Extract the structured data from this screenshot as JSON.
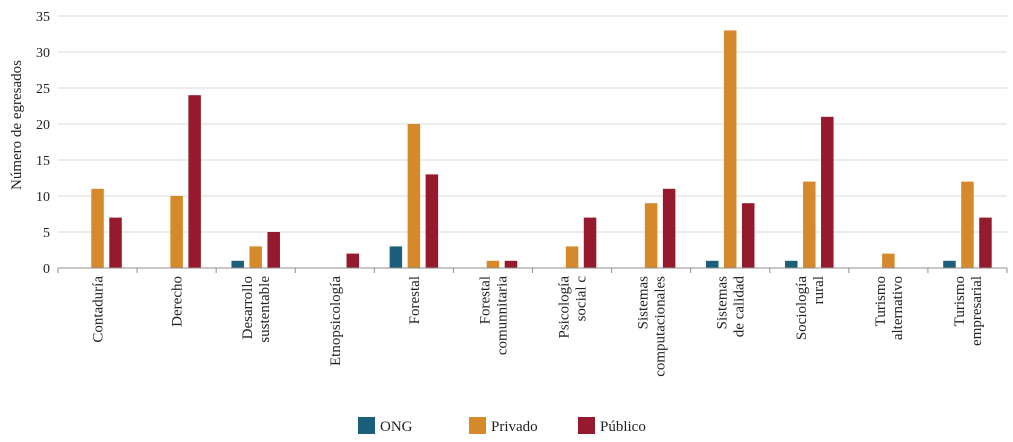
{
  "chart_data": {
    "type": "bar",
    "ylabel": "Número de egresados",
    "xlabel": "",
    "ylim": [
      0,
      35
    ],
    "yticks": [
      0,
      5,
      10,
      15,
      20,
      25,
      30,
      35
    ],
    "grid": true,
    "legend_position": "bottom",
    "categories": [
      [
        "Contaduría"
      ],
      [
        "Derecho"
      ],
      [
        "Desarrollo",
        "sustentable"
      ],
      [
        "Etnopsicología"
      ],
      [
        "Forestal"
      ],
      [
        "Forestal",
        "comunnitaria"
      ],
      [
        "Psicología",
        "social c"
      ],
      [
        "Sistemas",
        "computacionales"
      ],
      [
        "Sistemas",
        "de calidad"
      ],
      [
        "Sociología",
        "rural"
      ],
      [
        "Turismo",
        "alternativo"
      ],
      [
        "Turismo",
        "empresarial"
      ]
    ],
    "series": [
      {
        "name": "ONG",
        "color": "#1b5f7a",
        "values": [
          0,
          0,
          1,
          0,
          3,
          0,
          0,
          0,
          1,
          1,
          0,
          1
        ]
      },
      {
        "name": "Privado",
        "color": "#d6892a",
        "values": [
          11,
          10,
          3,
          0,
          20,
          1,
          3,
          9,
          33,
          12,
          2,
          12
        ]
      },
      {
        "name": "Público",
        "color": "#951a2d",
        "values": [
          7,
          24,
          5,
          2,
          13,
          1,
          7,
          11,
          9,
          21,
          0,
          7
        ]
      }
    ]
  }
}
